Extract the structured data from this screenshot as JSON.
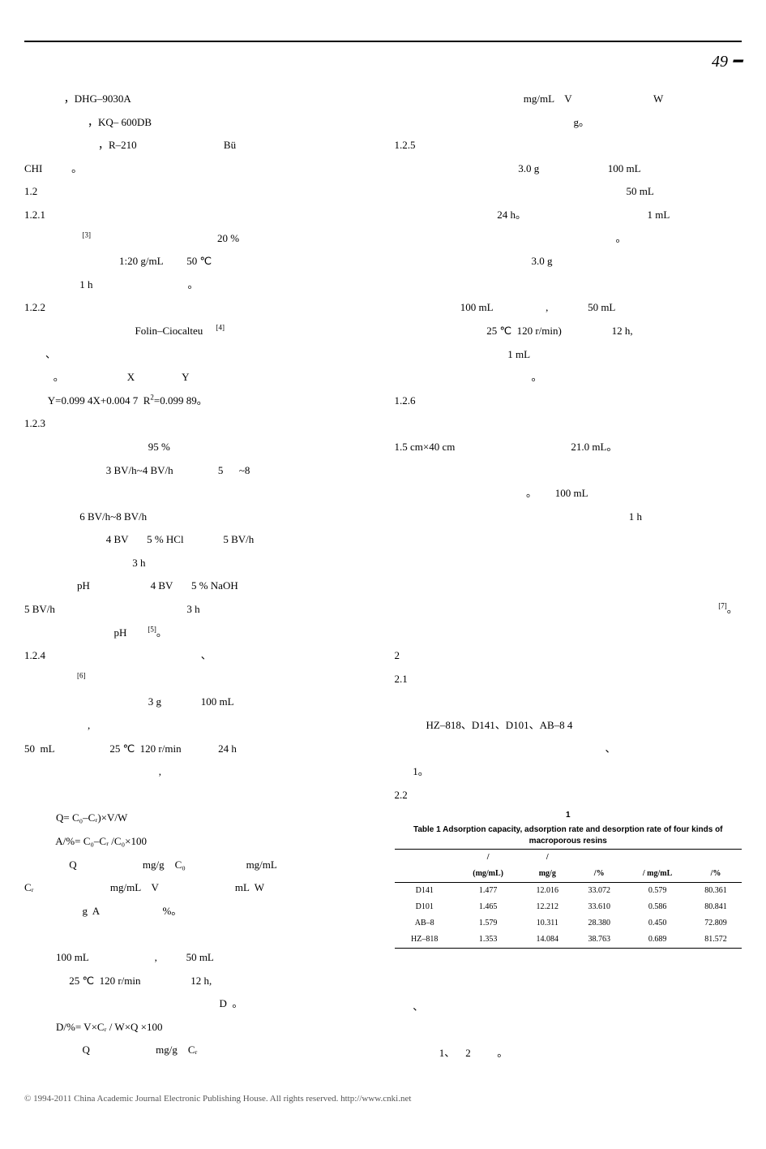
{
  "pageNumber": "49",
  "left": [
    "               ，DHG–9030A",
    "                        ，KQ– 600DB",
    "                            ，R–210                                 Bü",
    "CHI           。",
    "1.2",
    "1.2.1",
    {
      "indent": 22,
      "ref": "[3]",
      "after": "                                                20 %"
    },
    "                                    1:20 g/mL         50 ℃",
    "                     1 h                                    。",
    "1.2.2",
    {
      "indent": 42,
      "plain": "Folin–Ciocalteu     ",
      "ref": "[4]"
    },
    "        、",
    "           。                        X                  Y",
    {
      "indent": 9,
      "plain": "Y=0.099 4X+0.004 7  R",
      "sup2": "2",
      "after": "=0.099 89。"
    },
    "1.2.3",
    "                                               95 %",
    "                               3 BV/h~4 BV/h                 5      ~8",
    "",
    "                     6 BV/h~8 BV/h",
    "                               4 BV       5 % HCl               5 BV/h",
    "                                         3 h",
    "                    pH                       4 BV       5 % NaOH",
    "5 BV/h                                                  3 h",
    {
      "indent": 34,
      "plain": "pH        ",
      "ref": "[5]",
      "after": "。"
    },
    "1.2.4                                                           、",
    {
      "indent": 20,
      "ref": "[6]"
    },
    "                                               3 g               100 mL",
    "                        ,",
    "50  mL                     25 ℃  120 r/min              24 h",
    "                                                   ,",
    "",
    "            Q= C₀–Cᵣ)×V/W",
    "            A/%= C₀–Cᵣ /C₀×100",
    "                 Q                         mg/g    C₀                       mg/mL",
    "Cᵣ                             mg/mL    V                             mL  W",
    "                      g  A                        %。",
    "",
    "            100 mL                         ,           50 mL",
    "                 25 ℃  120 r/min                   12 h,",
    "                                                                          D  。",
    "            D/%= V×Cᵣ / W×Q ×100",
    "                      Q                         mg/g    Cᵣ"
  ],
  "right": [
    "                                                 mg/mL    V                               W",
    "                                                                    g。",
    "1.2.5",
    "                                               3.0 g                          100 mL",
    "                                                                                        50 mL",
    "                                       24 h。                                              1 mL",
    "                                                                                    。",
    "                                                    3.0 g",
    "",
    "                         100 mL                    ,               50 mL",
    "                                   25 ℃  120 r/min)                   12 h,",
    "                                           1 mL",
    "                                                    。",
    "1.2.6",
    "",
    "1.5 cm×40 cm                                            21.0 mL。",
    "",
    "                                                  。       100 mL",
    "                                                                                         1 h",
    "",
    "",
    "",
    {
      "indent": 0,
      "plain": "                                                                                                                           ",
      "ref": "[7]",
      "after": "。"
    },
    "",
    "2",
    "2.1",
    "",
    "            HZ–818、D141、D101、AB–8 4",
    "                                                                                、",
    "       1。",
    "2.2"
  ],
  "table": {
    "titleCn": "1",
    "titleEn": "Table 1   Adsorption capacity, adsorption rate and desorption rate of four kinds of macroporous resins",
    "header1": [
      "",
      "/",
      "/",
      "",
      "",
      ""
    ],
    "header2": [
      "",
      "(mg/mL)",
      "mg/g",
      "/%",
      "/  mg/mL",
      "/%"
    ],
    "rows": [
      [
        "D141",
        "1.477",
        "12.016",
        "33.072",
        "0.579",
        "80.361"
      ],
      [
        "D101",
        "1.465",
        "12.212",
        "33.610",
        "0.586",
        "80.841"
      ],
      [
        "AB–8",
        "1.579",
        "10.311",
        "28.380",
        "0.450",
        "72.809"
      ],
      [
        "HZ–818",
        "1.353",
        "14.084",
        "38.763",
        "0.689",
        "81.572"
      ]
    ]
  },
  "rightAfter": [
    "",
    "",
    "       、",
    "",
    "                 1、    2          。"
  ],
  "footer": "© 1994-2011 China Academic Journal Electronic Publishing House. All rights reserved.    http://www.cnki.net"
}
